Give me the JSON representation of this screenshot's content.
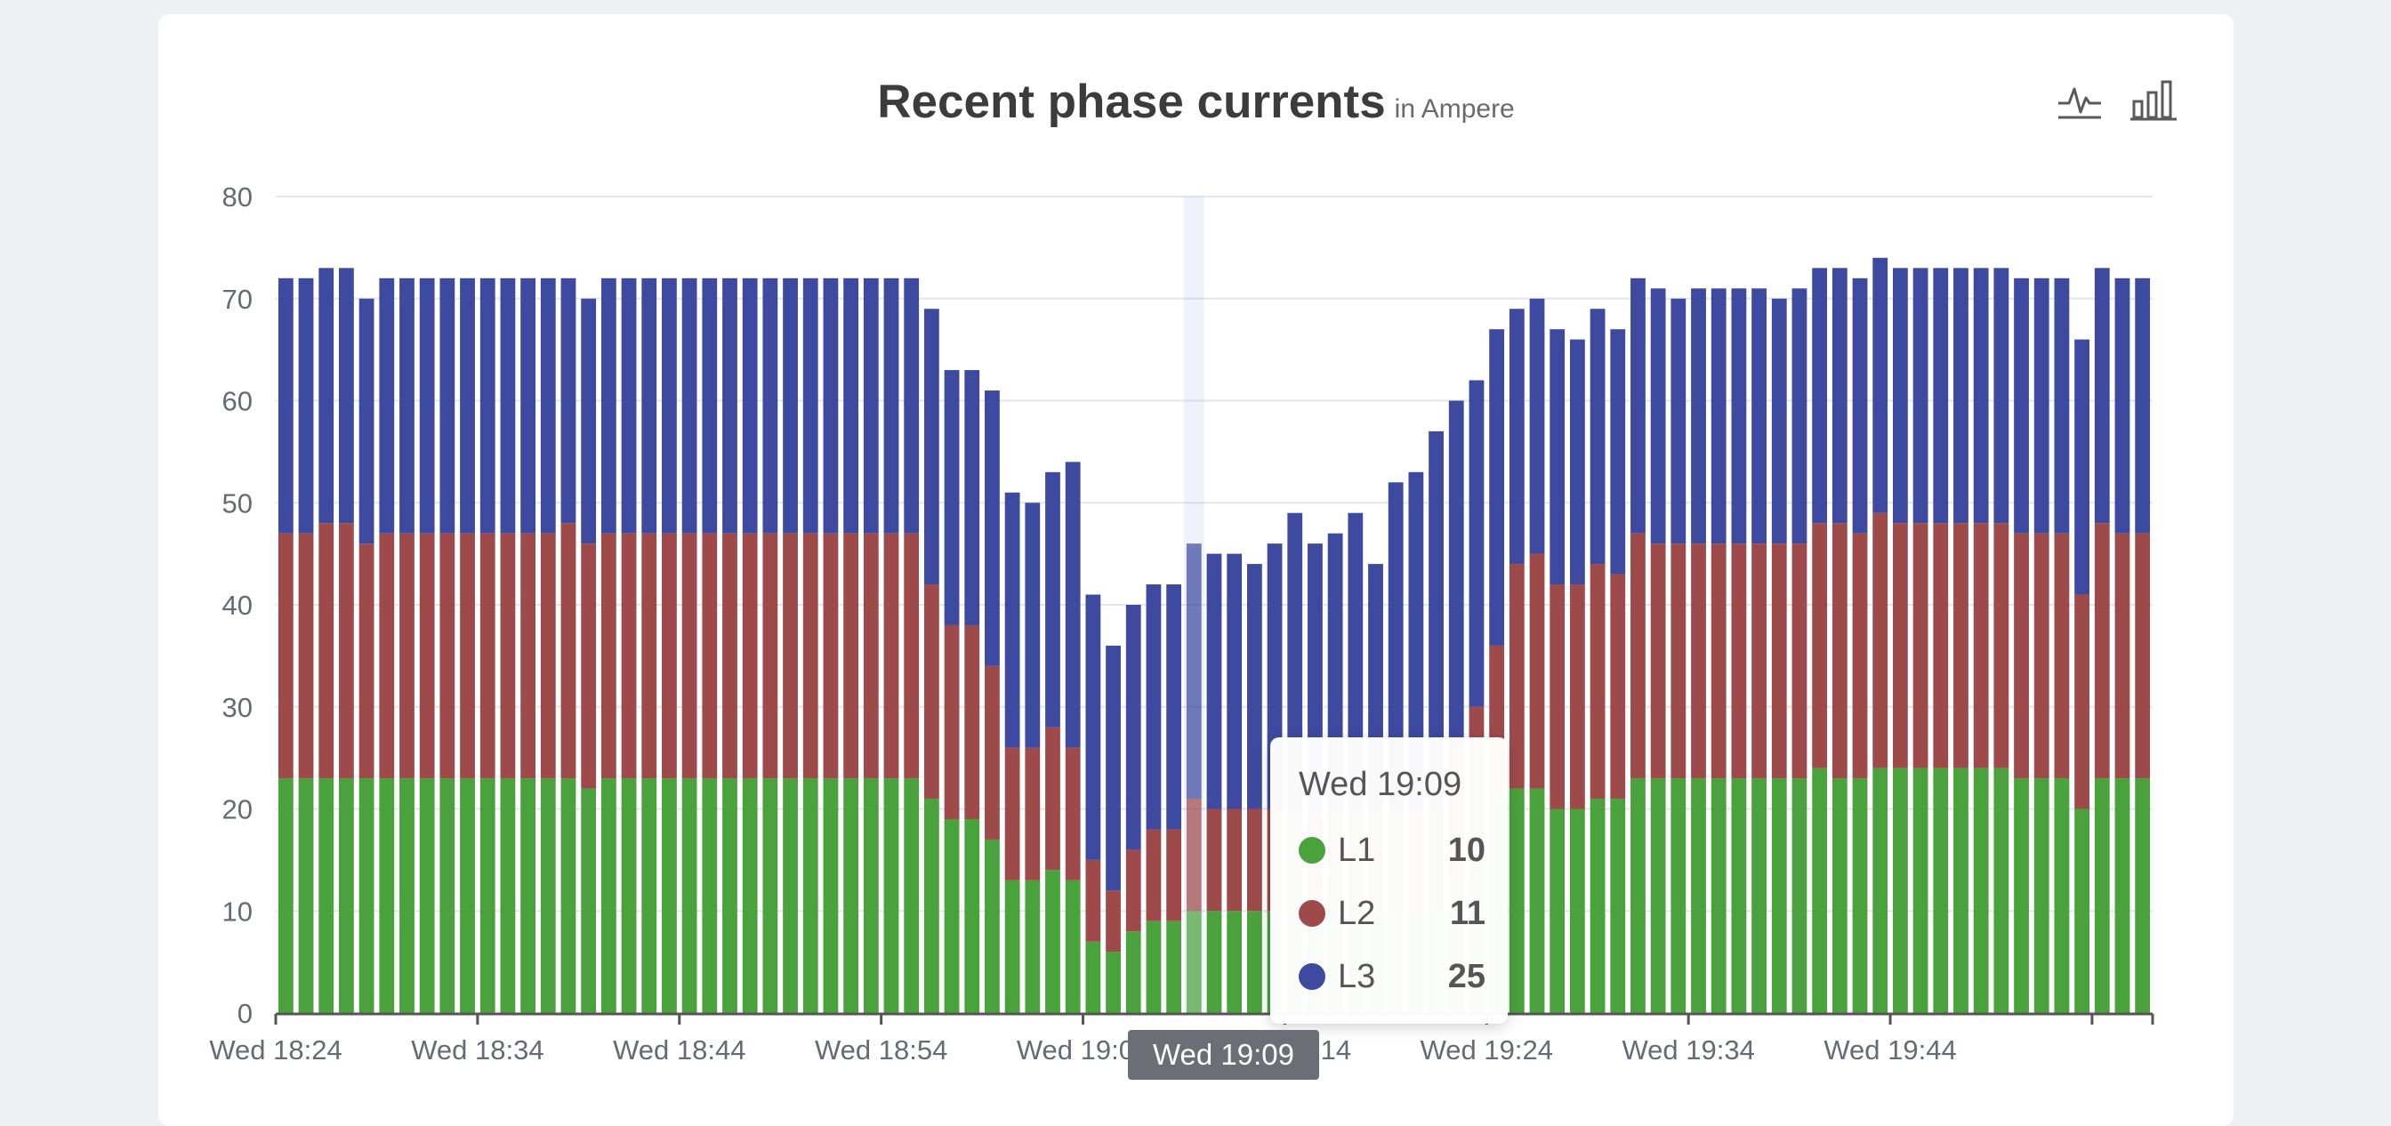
{
  "header": {
    "title": "Recent phase currents",
    "unit": "in Ampere",
    "line_icon": "line-chart-icon",
    "bar_icon": "bar-chart-icon"
  },
  "colors": {
    "L1": "#4aa23c",
    "L2": "#9e4a4a",
    "L3": "#3d4a9f",
    "grid": "#e3e6ee",
    "axis": "#666a73"
  },
  "tooltip": {
    "time": "Wed 19:09",
    "rows": [
      {
        "name": "L1",
        "value": "10"
      },
      {
        "name": "L2",
        "value": "11"
      },
      {
        "name": "L3",
        "value": "25"
      }
    ]
  },
  "axis_pointer_label": "Wed 19:09",
  "chart_data": {
    "type": "bar",
    "stacked": true,
    "ylim": [
      0,
      80
    ],
    "yticks": [
      0,
      10,
      20,
      30,
      40,
      50,
      60,
      70,
      80
    ],
    "xtick_labels": [
      "Wed 18:24",
      "Wed 18:34",
      "Wed 18:44",
      "Wed 18:54",
      "Wed 19:04",
      "Wed 19:14",
      "Wed 19:24",
      "Wed 19:34",
      "Wed 19:44"
    ],
    "xtick_every": 10,
    "highlight_index": 45,
    "series": [
      {
        "name": "L1",
        "values": [
          23,
          23,
          23,
          23,
          23,
          23,
          23,
          23,
          23,
          23,
          23,
          23,
          23,
          23,
          23,
          22,
          23,
          23,
          23,
          23,
          23,
          23,
          23,
          23,
          23,
          23,
          23,
          23,
          23,
          23,
          23,
          23,
          21,
          19,
          19,
          17,
          13,
          13,
          14,
          13,
          7,
          6,
          8,
          9,
          9,
          10,
          10,
          10,
          10,
          10,
          10,
          10,
          10,
          10,
          10,
          10,
          10,
          10,
          13,
          17,
          21,
          22,
          22,
          20,
          20,
          21,
          21,
          23,
          23,
          23,
          23,
          23,
          23,
          23,
          23,
          23,
          24,
          23,
          23,
          24,
          24,
          24,
          24,
          24,
          24,
          24,
          23,
          23,
          23,
          20,
          23,
          23,
          23
        ]
      },
      {
        "name": "L2",
        "values": [
          24,
          24,
          25,
          25,
          23,
          24,
          24,
          24,
          24,
          24,
          24,
          24,
          24,
          24,
          25,
          24,
          24,
          24,
          24,
          24,
          24,
          24,
          24,
          24,
          24,
          24,
          24,
          24,
          24,
          24,
          24,
          24,
          21,
          19,
          19,
          17,
          13,
          13,
          14,
          13,
          8,
          6,
          8,
          9,
          9,
          11,
          10,
          10,
          10,
          10,
          10,
          10,
          10,
          10,
          10,
          10,
          10,
          10,
          13,
          13,
          15,
          22,
          23,
          22,
          22,
          23,
          22,
          24,
          23,
          23,
          23,
          23,
          23,
          23,
          23,
          23,
          24,
          25,
          24,
          25,
          24,
          24,
          24,
          24,
          24,
          24,
          24,
          24,
          24,
          21,
          25,
          24,
          24
        ]
      },
      {
        "name": "L3",
        "values": [
          25,
          25,
          25,
          25,
          24,
          25,
          25,
          25,
          25,
          25,
          25,
          25,
          25,
          25,
          24,
          24,
          25,
          25,
          25,
          25,
          25,
          25,
          25,
          25,
          25,
          25,
          25,
          25,
          25,
          25,
          25,
          25,
          27,
          25,
          25,
          27,
          25,
          24,
          25,
          28,
          26,
          24,
          24,
          24,
          24,
          25,
          25,
          25,
          24,
          26,
          29,
          26,
          27,
          29,
          24,
          32,
          33,
          37,
          34,
          32,
          31,
          25,
          25,
          25,
          24,
          25,
          24,
          25,
          25,
          24,
          25,
          25,
          25,
          25,
          24,
          25,
          25,
          25,
          25,
          25,
          25,
          25,
          25,
          25,
          25,
          25,
          25,
          25,
          25,
          25,
          25,
          25,
          25
        ]
      }
    ]
  }
}
